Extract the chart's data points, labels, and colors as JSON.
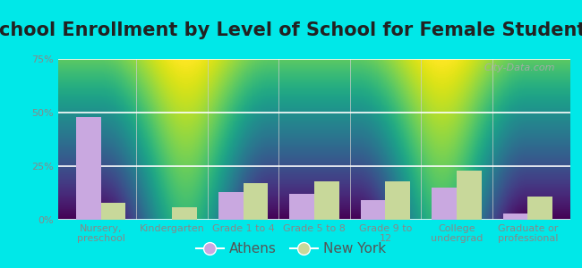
{
  "title": "School Enrollment by Level of School for Female Students",
  "categories": [
    "Nursery,\npreschool",
    "Kindergarten",
    "Grade 1 to 4",
    "Grade 5 to 8",
    "Grade 9 to\n12",
    "College\nundergrad",
    "Graduate or\nprofessional"
  ],
  "athens_values": [
    48,
    0,
    13,
    12,
    9,
    15,
    3
  ],
  "newyork_values": [
    8,
    6,
    17,
    18,
    18,
    23,
    11
  ],
  "athens_color": "#c9a8e0",
  "newyork_color": "#c8d89a",
  "background_outer": "#00e8e8",
  "background_inner": "#e8f5e2",
  "ylim": [
    0,
    75
  ],
  "yticks": [
    0,
    25,
    50,
    75
  ],
  "ytick_labels": [
    "0%",
    "25%",
    "50%",
    "75%"
  ],
  "legend_labels": [
    "Athens",
    "New York"
  ],
  "bar_width": 0.35,
  "title_fontsize": 15,
  "tick_fontsize": 8,
  "legend_fontsize": 11,
  "title_color": "#222222",
  "tick_color": "#888888",
  "watermark": "City-Data.com"
}
